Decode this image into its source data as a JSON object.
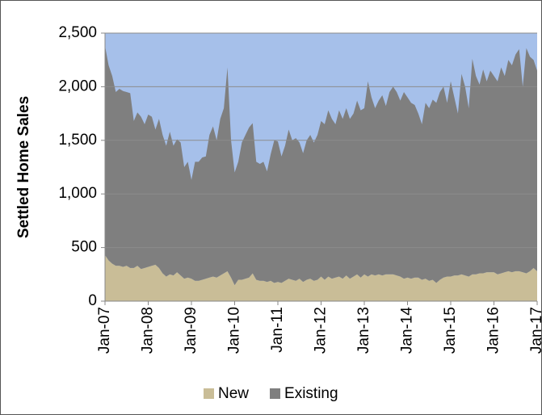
{
  "chart_data": {
    "type": "stacked-area",
    "y_label": "Settled Home Sales",
    "categories": [
      "Jan-07",
      null,
      null,
      null,
      null,
      null,
      null,
      null,
      null,
      null,
      null,
      null,
      "Jan-08",
      null,
      null,
      null,
      null,
      null,
      null,
      null,
      null,
      null,
      null,
      null,
      "Jan-09",
      null,
      null,
      null,
      null,
      null,
      null,
      null,
      null,
      null,
      null,
      null,
      "Jan-10",
      null,
      null,
      null,
      null,
      null,
      null,
      null,
      null,
      null,
      null,
      null,
      "Jan-11",
      null,
      null,
      null,
      null,
      null,
      null,
      null,
      null,
      null,
      null,
      null,
      "Jan-12",
      null,
      null,
      null,
      null,
      null,
      null,
      null,
      null,
      null,
      null,
      null,
      "Jan-13",
      null,
      null,
      null,
      null,
      null,
      null,
      null,
      null,
      null,
      null,
      null,
      "Jan-14",
      null,
      null,
      null,
      null,
      null,
      null,
      null,
      null,
      null,
      null,
      null,
      "Jan-15",
      null,
      null,
      null,
      null,
      null,
      null,
      null,
      null,
      null,
      null,
      null,
      "Jan-16",
      null,
      null,
      null,
      null,
      null,
      null,
      null,
      null,
      null,
      null,
      null,
      "Jan-17"
    ],
    "series": [
      {
        "name": "New",
        "color": "#c9bd97",
        "values": [
          430,
          380,
          350,
          330,
          330,
          320,
          330,
          310,
          310,
          330,
          300,
          310,
          320,
          330,
          340,
          310,
          260,
          230,
          250,
          240,
          270,
          240,
          210,
          220,
          210,
          190,
          190,
          200,
          210,
          220,
          230,
          220,
          240,
          260,
          280,
          220,
          150,
          200,
          200,
          210,
          220,
          260,
          200,
          190,
          190,
          180,
          190,
          170,
          180,
          170,
          190,
          210,
          200,
          190,
          210,
          180,
          200,
          210,
          190,
          200,
          230,
          200,
          230,
          210,
          220,
          230,
          210,
          240,
          210,
          230,
          250,
          220,
          250,
          230,
          250,
          240,
          250,
          240,
          250,
          250,
          250,
          240,
          230,
          210,
          220,
          210,
          220,
          220,
          200,
          210,
          190,
          200,
          170,
          200,
          220,
          230,
          230,
          240,
          240,
          250,
          240,
          230,
          250,
          250,
          260,
          260,
          270,
          270,
          270,
          250,
          260,
          270,
          280,
          270,
          280,
          280,
          270,
          260,
          280,
          310,
          280
        ]
      },
      {
        "name": "Existing",
        "color": "#7f7f7f",
        "values": [
          1950,
          1820,
          1750,
          1620,
          1650,
          1640,
          1620,
          1630,
          1370,
          1430,
          1420,
          1340,
          1420,
          1390,
          1260,
          1390,
          1290,
          1220,
          1330,
          1210,
          1240,
          1240,
          1040,
          1080,
          920,
          1110,
          1110,
          1140,
          1140,
          1330,
          1400,
          1280,
          1460,
          1540,
          1900,
          1280,
          1050,
          1100,
          1280,
          1340,
          1400,
          1400,
          1100,
          1090,
          1110,
          1030,
          1180,
          1330,
          1310,
          1180,
          1260,
          1390,
          1300,
          1330,
          1270,
          1200,
          1300,
          1340,
          1290,
          1350,
          1450,
          1450,
          1550,
          1490,
          1430,
          1550,
          1490,
          1560,
          1490,
          1520,
          1620,
          1560,
          1550,
          1820,
          1650,
          1560,
          1620,
          1680,
          1570,
          1700,
          1750,
          1710,
          1640,
          1740,
          1680,
          1640,
          1610,
          1530,
          1450,
          1640,
          1610,
          1680,
          1680,
          1750,
          1780,
          1620,
          1820,
          1660,
          1510,
          1870,
          1760,
          1570,
          2010,
          1850,
          1760,
          1900,
          1780,
          1880,
          1830,
          1800,
          1920,
          1830,
          1970,
          1930,
          2020,
          2070,
          1730,
          2100,
          2000,
          1940,
          1870
        ]
      }
    ],
    "ylim": [
      0,
      2500
    ],
    "yticks": [
      0,
      500,
      {
        "value": 1000,
        "label": "1,000"
      },
      {
        "value": 1500,
        "label": "1,500"
      },
      {
        "value": 2000,
        "label": "2,000"
      },
      {
        "value": 2500,
        "label": "2,500"
      }
    ],
    "grid": true,
    "legend": "bottom",
    "plot_background": "#a6c0ea"
  }
}
